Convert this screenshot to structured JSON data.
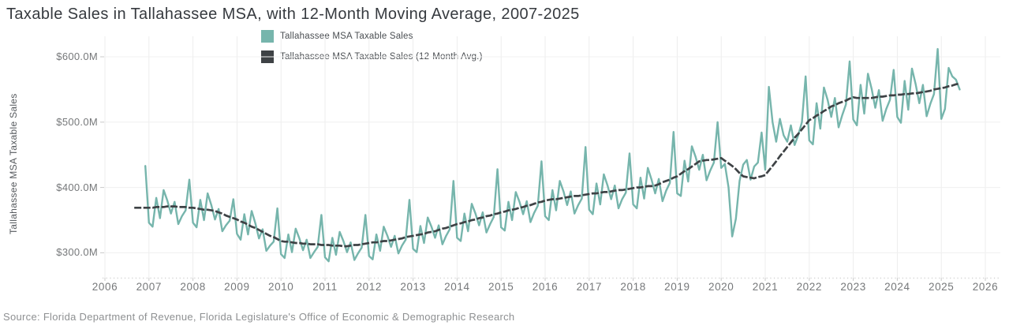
{
  "header": {
    "title": "Taxable Sales in Tallahassee MSA, with 12-Month Moving Average, 2007-2025"
  },
  "legend": {
    "items": [
      {
        "label": "Tallahassee MSA Taxable Sales",
        "color": "#76b5ac"
      },
      {
        "label": "Tallahassee MSA Taxable Sales (12-Month Avg.)",
        "color": "#3e4245"
      }
    ]
  },
  "y_axis": {
    "title": "Tallahassee MSA Taxable Sales"
  },
  "source": {
    "text": "Source: Florida Department of Revenue, Florida Legislature's Office of Economic & Demographic Research"
  },
  "chart_data": {
    "type": "line",
    "title": "Taxable Sales in Tallahassee MSA, with 12-Month Moving Average, 2007-2025",
    "xlabel": "",
    "ylabel": "Tallahassee MSA Taxable Sales",
    "unit": "USD millions per month",
    "grid": true,
    "legend_position": "top-center",
    "x_ticks": [
      "2006",
      "2007",
      "2008",
      "2009",
      "2010",
      "2011",
      "2012",
      "2013",
      "2014",
      "2015",
      "2016",
      "2017",
      "2018",
      "2019",
      "2020",
      "2021",
      "2022",
      "2023",
      "2024",
      "2025",
      "2026"
    ],
    "y_ticks": [
      {
        "label": "$600.0M",
        "value": 600
      },
      {
        "label": "$500.0M",
        "value": 500
      },
      {
        "label": "$400.0M",
        "value": 400
      },
      {
        "label": "$300.0M",
        "value": 300
      }
    ],
    "x_range_years": [
      2006.0,
      2026.4
    ],
    "y_range_millions": [
      262,
      632
    ],
    "series": [
      {
        "name": "Tallahassee MSA Taxable Sales",
        "color": "#76b5ac",
        "frequency": "monthly",
        "start_year": 2006,
        "start_month": 12,
        "values": [
          433,
          346,
          340,
          384,
          353,
          396,
          380,
          360,
          378,
          344,
          356,
          365,
          412,
          346,
          339,
          381,
          350,
          391,
          373,
          351,
          367,
          333,
          342,
          349,
          382,
          329,
          320,
          359,
          328,
          364,
          345,
          322,
          336,
          303,
          311,
          317,
          368,
          298,
          292,
          328,
          301,
          337,
          322,
          304,
          320,
          292,
          301,
          309,
          358,
          293,
          287,
          323,
          297,
          332,
          318,
          301,
          316,
          289,
          299,
          308,
          358,
          295,
          290,
          328,
          303,
          340,
          326,
          309,
          326,
          299,
          311,
          320,
          381,
          306,
          301,
          341,
          315,
          354,
          340,
          323,
          342,
          313,
          326,
          336,
          410,
          323,
          318,
          360,
          333,
          375,
          360,
          342,
          362,
          331,
          344,
          355,
          428,
          339,
          334,
          378,
          350,
          393,
          378,
          359,
          379,
          347,
          361,
          372,
          440,
          356,
          350,
          396,
          365,
          410,
          394,
          373,
          394,
          360,
          373,
          383,
          462,
          366,
          359,
          406,
          374,
          420,
          403,
          382,
          403,
          368,
          382,
          392,
          452,
          374,
          368,
          415,
          383,
          430,
          412,
          391,
          413,
          379,
          395,
          407,
          485,
          391,
          387,
          441,
          409,
          463,
          447,
          427,
          450,
          411,
          426,
          438,
          500,
          430,
          436,
          400,
          325,
          352,
          410,
          435,
          442,
          412,
          432,
          438,
          484,
          427,
          554,
          500,
          470,
          505,
          480,
          470,
          495,
          465,
          480,
          500,
          570,
          472,
          466,
          529,
          490,
          553,
          534,
          508,
          537,
          492,
          511,
          527,
          593,
          504,
          495,
          557,
          513,
          574,
          551,
          522,
          549,
          502,
          520,
          534,
          580,
          508,
          499,
          563,
          519,
          582,
          558,
          529,
          557,
          509,
          528,
          543,
          612,
          505,
          520,
          583,
          570,
          565,
          550
        ]
      },
      {
        "name": "Tallahassee MSA Taxable Sales (12-Month Avg.)",
        "color": "#3e4245",
        "frequency": "monthly",
        "start_year": 2006,
        "start_month": 9,
        "values": [
          369,
          369,
          369,
          369,
          369,
          369,
          370,
          370,
          370,
          371,
          371,
          371,
          370,
          370,
          370,
          369,
          369,
          368,
          367,
          366,
          366,
          365,
          364,
          362,
          360,
          357,
          355,
          353,
          351,
          348,
          346,
          343,
          340,
          338,
          335,
          332,
          329,
          326,
          324,
          321,
          318,
          317,
          317,
          316,
          315,
          315,
          314,
          314,
          313,
          313,
          313,
          312,
          312,
          312,
          311,
          311,
          311,
          310,
          310,
          311,
          312,
          312,
          313,
          314,
          315,
          316,
          316,
          317,
          318,
          318,
          319,
          320,
          321,
          322,
          324,
          325,
          326,
          327,
          328,
          329,
          331,
          332,
          333,
          335,
          337,
          338,
          340,
          342,
          344,
          345,
          347,
          348,
          350,
          351,
          353,
          354,
          356,
          357,
          359,
          360,
          362,
          363,
          365,
          366,
          367,
          369,
          370,
          372,
          373,
          375,
          377,
          378,
          380,
          381,
          382,
          382,
          383,
          384,
          385,
          386,
          387,
          387,
          388,
          389,
          390,
          391,
          391,
          392,
          393,
          393,
          394,
          395,
          396,
          396,
          397,
          398,
          399,
          400,
          400,
          401,
          402,
          402,
          403,
          405,
          408,
          410,
          412,
          415,
          417,
          421,
          425,
          428,
          432,
          436,
          440,
          441,
          442,
          442,
          443,
          444,
          445,
          441,
          437,
          433,
          428,
          422,
          417,
          416,
          415,
          414,
          416,
          417,
          419,
          426,
          433,
          440,
          448,
          455,
          462,
          469,
          476,
          482,
          489,
          496,
          503,
          506,
          510,
          513,
          517,
          520,
          524,
          526,
          529,
          531,
          533,
          536,
          538,
          537,
          537,
          537,
          537,
          537,
          538,
          539,
          539,
          540,
          541,
          541,
          542,
          542,
          543,
          543,
          544,
          544,
          545,
          546,
          547,
          548,
          550,
          551,
          552,
          553,
          555,
          556,
          558,
          559
        ]
      }
    ]
  }
}
